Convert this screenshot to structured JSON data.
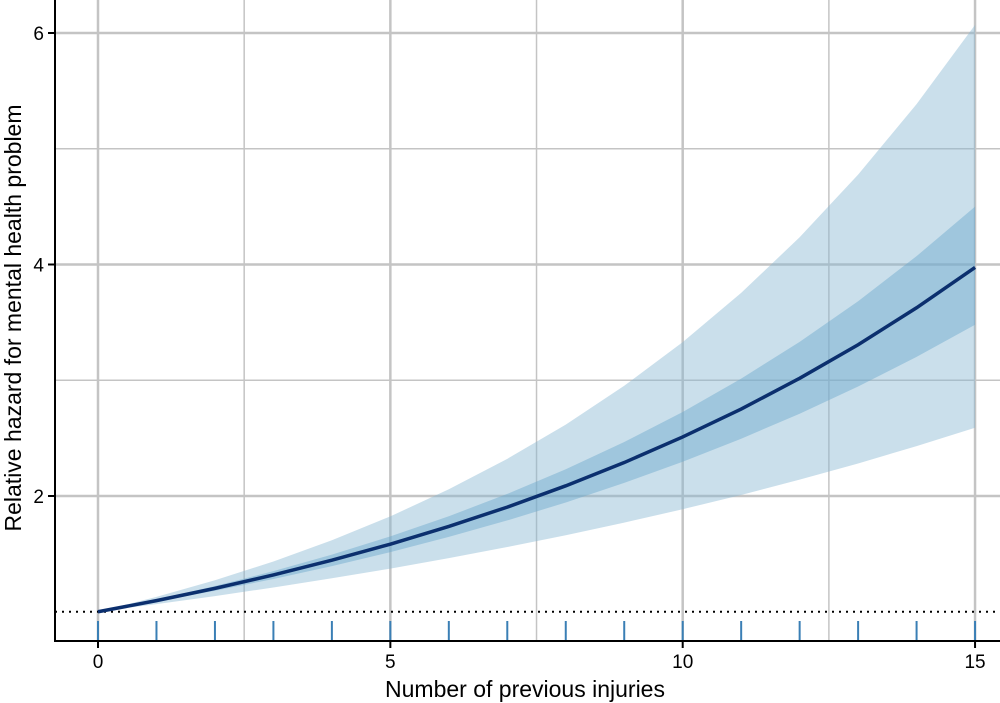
{
  "chart_data": {
    "type": "line",
    "title": "",
    "xlabel": "Number of previous injuries",
    "ylabel": "Relative hazard for mental health problem",
    "xlim": [
      -0.75,
      15.5
    ],
    "ylim": [
      0.75,
      6.28
    ],
    "x_ticks": [
      0,
      5,
      10,
      15
    ],
    "x_tick_labels": [
      "0",
      "5",
      "10",
      "15"
    ],
    "y_ticks": [
      2,
      4,
      6
    ],
    "y_tick_labels": [
      "2",
      "4",
      "6"
    ],
    "x_minor_grid": [
      2.5,
      7.5,
      12.5
    ],
    "y_minor_grid": [
      3,
      5
    ],
    "grid": true,
    "reference_line": 1,
    "rug_x": [
      0,
      1,
      2,
      3,
      4,
      5,
      6,
      7,
      8,
      9,
      10,
      11,
      12,
      13,
      14,
      15
    ],
    "x": [
      0,
      1,
      2,
      3,
      4,
      5,
      6,
      7,
      8,
      9,
      10,
      11,
      12,
      13,
      14,
      15
    ],
    "estimate": [
      1,
      1.096,
      1.202,
      1.318,
      1.445,
      1.584,
      1.737,
      1.904,
      2.088,
      2.289,
      2.51,
      2.751,
      3.017,
      3.307,
      3.626,
      3.975
    ],
    "outer_band_upper": [
      1,
      1.128,
      1.272,
      1.434,
      1.618,
      1.824,
      2.058,
      2.321,
      2.617,
      2.952,
      3.329,
      3.755,
      4.235,
      4.776,
      5.386,
      6.07
    ],
    "outer_band_lower": [
      1,
      1.066,
      1.135,
      1.21,
      1.289,
      1.373,
      1.463,
      1.559,
      1.661,
      1.77,
      1.886,
      2.009,
      2.141,
      2.281,
      2.431,
      2.59
    ],
    "inner_band_upper": [
      1,
      1.105,
      1.222,
      1.351,
      1.494,
      1.651,
      1.825,
      2.018,
      2.231,
      2.466,
      2.726,
      3.014,
      3.332,
      3.683,
      4.072,
      4.5
    ],
    "inner_band_lower": [
      1,
      1.087,
      1.181,
      1.283,
      1.394,
      1.515,
      1.647,
      1.789,
      1.944,
      2.113,
      2.296,
      2.495,
      2.711,
      2.946,
      3.202,
      3.48
    ],
    "colors": {
      "line": "#0b2f6e",
      "outer_band": "#8ab8d3",
      "inner_band": "#6aa9cc",
      "rug": "#3a7fb5",
      "grid": "#c4c4c4"
    }
  }
}
